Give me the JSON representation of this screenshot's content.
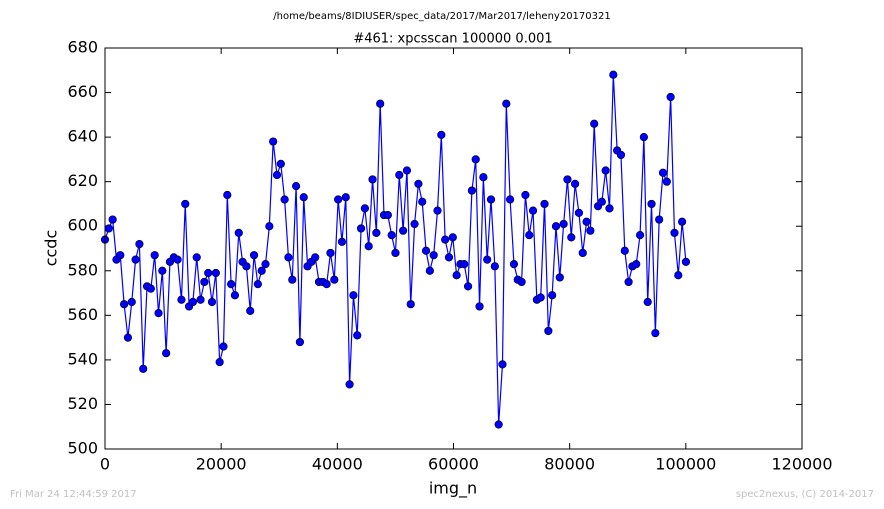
{
  "chart_data": {
    "type": "line",
    "suptitle": "/home/beams/8IDIUSER/spec_data/2017/Mar2017/leheny20170321",
    "title": "#461: xpcsscan 100000 0.001",
    "xlabel": "img_n",
    "ylabel": "ccdc",
    "footer_left": "Fri Mar 24 12:44:59 2017",
    "footer_right": "spec2nexus, (C) 2014-2017",
    "xlim": [
      0,
      120000
    ],
    "xticks": [
      0,
      20000,
      40000,
      60000,
      80000,
      100000,
      120000
    ],
    "ylim": [
      500,
      680
    ],
    "yticks": [
      500,
      520,
      540,
      560,
      580,
      600,
      620,
      640,
      660,
      680
    ],
    "x": [
      0,
      658,
      1316,
      1974,
      2632,
      3290,
      3948,
      4606,
      5264,
      5922,
      6580,
      7238,
      7896,
      8554,
      9212,
      9870,
      10528,
      11186,
      11844,
      12502,
      13160,
      13818,
      14476,
      15134,
      15792,
      16450,
      17108,
      17766,
      18424,
      19082,
      19740,
      20398,
      21056,
      21714,
      22372,
      23030,
      23688,
      24346,
      25004,
      25662,
      26320,
      26978,
      27636,
      28294,
      28952,
      29610,
      30268,
      30926,
      31584,
      32242,
      32900,
      33558,
      34216,
      34874,
      35532,
      36190,
      36848,
      37506,
      38164,
      38822,
      39480,
      40138,
      40796,
      41454,
      42112,
      42770,
      43428,
      44086,
      44744,
      45402,
      46060,
      46718,
      47376,
      48034,
      48692,
      49350,
      50008,
      50666,
      51324,
      51982,
      52640,
      53298,
      53956,
      54614,
      55272,
      55930,
      56588,
      57246,
      57904,
      58562,
      59220,
      59878,
      60536,
      61194,
      61852,
      62510,
      63168,
      63826,
      64484,
      65142,
      65800,
      66458,
      67116,
      67774,
      68432,
      69090,
      69748,
      70406,
      71064,
      71722,
      72380,
      73038,
      73696,
      74354,
      75012,
      75670,
      76328,
      76986,
      77644,
      78302,
      78960,
      79618,
      80276,
      80934,
      81592,
      82250,
      82908,
      83566,
      84224,
      84882,
      85540,
      86198,
      86856,
      87514,
      88172,
      88830,
      89488,
      90146,
      90804,
      91462,
      92120,
      92778,
      93436,
      94094,
      94752,
      95410,
      96068,
      96726,
      97384,
      98042,
      98700,
      99358,
      100016
    ],
    "series": [
      {
        "color": "#0000ff",
        "values": [
          594,
          599,
          603,
          585,
          587,
          565,
          550,
          566,
          585,
          592,
          536,
          573,
          572,
          587,
          561,
          580,
          543,
          584,
          586,
          585,
          567,
          610,
          564,
          566,
          586,
          567,
          575,
          579,
          566,
          579,
          539,
          546,
          614,
          574,
          569,
          597,
          584,
          582,
          562,
          587,
          574,
          580,
          583,
          600,
          638,
          623,
          628,
          612,
          586,
          576,
          618,
          548,
          613,
          582,
          584,
          586,
          575,
          575,
          574,
          588,
          576,
          612,
          593,
          613,
          529,
          569,
          551,
          599,
          608,
          591,
          621,
          597,
          655,
          605,
          605,
          596,
          588,
          623,
          598,
          625,
          565,
          601,
          619,
          611,
          589,
          580,
          587,
          607,
          641,
          594,
          586,
          595,
          578,
          583,
          583,
          573,
          616,
          630,
          564,
          622,
          585,
          612,
          582,
          511,
          538,
          655,
          612,
          583,
          576,
          575,
          614,
          596,
          607,
          567,
          568,
          610,
          553,
          569,
          600,
          577,
          601,
          621,
          595,
          619,
          606,
          588,
          602,
          598,
          646,
          609,
          611,
          625,
          608,
          668,
          634,
          632,
          589,
          575,
          582,
          583,
          596,
          640,
          566,
          610,
          552,
          603,
          624,
          620,
          658,
          597,
          578,
          602,
          584
        ]
      }
    ]
  }
}
